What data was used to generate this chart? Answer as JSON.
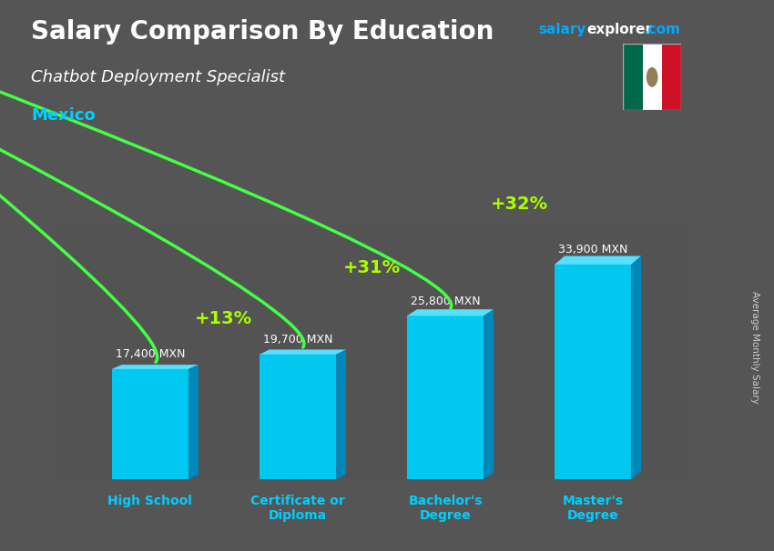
{
  "title": "Salary Comparison By Education",
  "subtitle": "Chatbot Deployment Specialist",
  "country": "Mexico",
  "ylabel": "Average Monthly Salary",
  "categories": [
    "High School",
    "Certificate or\nDiploma",
    "Bachelor's\nDegree",
    "Master's\nDegree"
  ],
  "values": [
    17400,
    19700,
    25800,
    33900
  ],
  "value_labels": [
    "17,400 MXN",
    "19,700 MXN",
    "25,800 MXN",
    "33,900 MXN"
  ],
  "pct_labels": [
    "+13%",
    "+31%",
    "+32%"
  ],
  "color_front": "#00C8F0",
  "color_top": "#55E0FF",
  "color_side": "#0088BB",
  "bg_color": "#555555",
  "title_color": "#FFFFFF",
  "subtitle_color": "#FFFFFF",
  "country_color": "#00CFFF",
  "value_color": "#FFFFFF",
  "pct_color": "#AAFF00",
  "arrow_color": "#44FF44",
  "xlabel_color": "#00CFFF",
  "brand_salary_color": "#00AAFF",
  "brand_explorer_color": "#FFFFFF",
  "brand_com_color": "#00AAFF",
  "ylim": [
    0,
    40000
  ],
  "flag_green": "#006847",
  "flag_white": "#FFFFFF",
  "flag_red": "#CE1126"
}
